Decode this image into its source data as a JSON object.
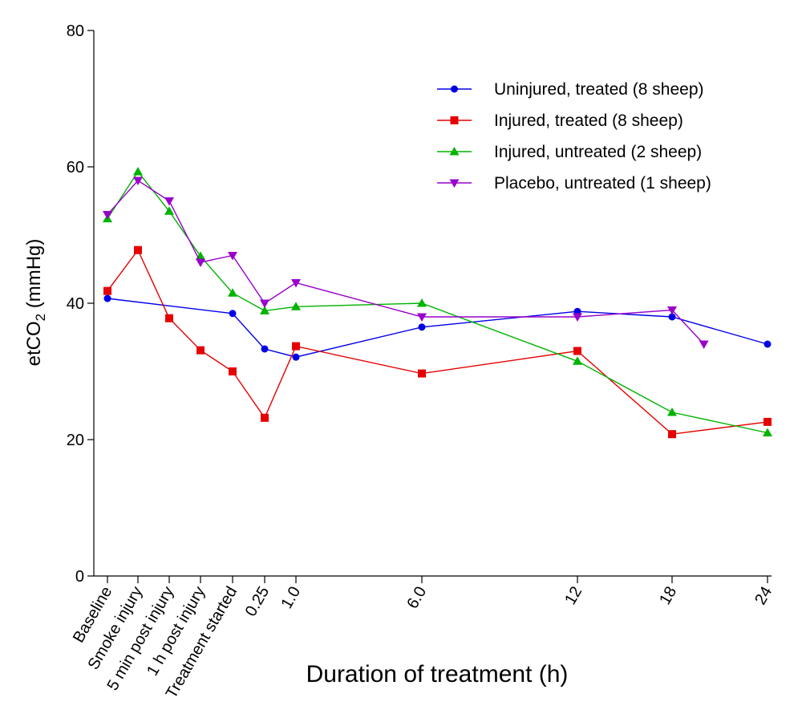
{
  "chart_data": {
    "type": "line",
    "xlabel": "Duration of treatment (h)",
    "ylabel_main": "etCO",
    "ylabel_sub": "2",
    "ylabel_unit": " (mmHg)",
    "ylim": [
      0,
      80
    ],
    "yticks": [
      0,
      20,
      40,
      60,
      80
    ],
    "categories": [
      "Baseline",
      "Smoke injury",
      "5 min post injury",
      "1 h post injury",
      "Treatment started",
      "0.25",
      "1.0",
      "6.0",
      "12",
      "18",
      "24"
    ],
    "rotated_tick_count": 5,
    "legend_position": "top-right",
    "grid": false,
    "series": [
      {
        "name": "Uninjured, treated (8 sheep)",
        "color": "#0000e6",
        "marker": "circle",
        "points": [
          [
            "Baseline",
            40.7
          ],
          [
            "Treatment started",
            38.5
          ],
          [
            "0.25",
            33.3
          ],
          [
            "1.0",
            32.1
          ],
          [
            "6.0",
            36.5
          ],
          [
            "12",
            38.8
          ],
          [
            "18",
            38.0
          ],
          [
            "24",
            34.0
          ]
        ]
      },
      {
        "name": "Injured, treated (8 sheep)",
        "color": "#e60000",
        "marker": "square",
        "points": [
          [
            "Baseline",
            41.8
          ],
          [
            "Smoke injury",
            47.8
          ],
          [
            "5 min post injury",
            37.8
          ],
          [
            "1 h post injury",
            33.1
          ],
          [
            "Treatment started",
            30.0
          ],
          [
            "0.25",
            23.2
          ],
          [
            "1.0",
            33.7
          ],
          [
            "6.0",
            29.7
          ],
          [
            "12",
            33.0
          ],
          [
            "18",
            20.8
          ],
          [
            "24",
            22.6
          ]
        ]
      },
      {
        "name": "Injured, untreated (2 sheep)",
        "color": "#00b300",
        "marker": "triangle-up",
        "points": [
          [
            "Baseline",
            52.4
          ],
          [
            "Smoke injury",
            59.3
          ],
          [
            "5 min post injury",
            53.5
          ],
          [
            "1 h post injury",
            46.9
          ],
          [
            "Treatment started",
            41.5
          ],
          [
            "0.25",
            38.9
          ],
          [
            "1.0",
            39.5
          ],
          [
            "6.0",
            40.0
          ],
          [
            "12",
            31.5
          ],
          [
            "18",
            24.0
          ],
          [
            "24",
            21.0
          ]
        ]
      },
      {
        "name": "Placebo, untreated (1 sheep)",
        "color": "#9900cc",
        "marker": "triangle-down",
        "points": [
          [
            "Baseline",
            53.0
          ],
          [
            "Smoke injury",
            58.0
          ],
          [
            "5 min post injury",
            55.0
          ],
          [
            "1 h post injury",
            46.0
          ],
          [
            "Treatment started",
            47.0
          ],
          [
            "0.25",
            40.0
          ],
          [
            "1.0",
            43.0
          ],
          [
            "6.0",
            38.0
          ],
          [
            "12",
            38.0
          ],
          [
            "18",
            39.0
          ],
          [
            20,
            34.0
          ]
        ]
      }
    ]
  }
}
